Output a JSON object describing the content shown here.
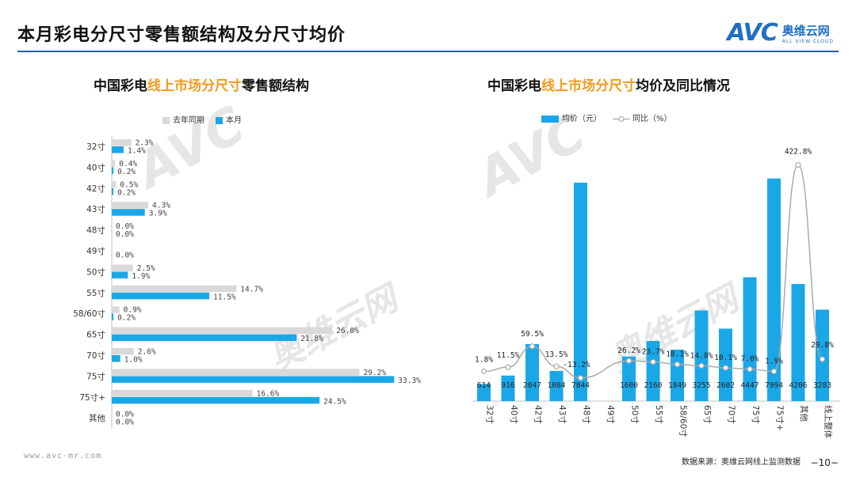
{
  "header": {
    "title": "本月彩电分尺寸零售额结构及分尺寸均价",
    "brand_logo": "AVC",
    "brand_cn": "奥维云网",
    "brand_en": "ALL VIEW CLOUD"
  },
  "left_chart": {
    "title_pre": "中国彩电",
    "title_hl": "线上市场分尺寸",
    "title_post": "零售额结构",
    "legend_prev": "去年同期",
    "legend_curr": "本月"
  },
  "right_chart": {
    "title_pre": "中国彩电",
    "title_hl": "线上市场分尺寸",
    "title_post": "均价及同比情况",
    "legend_bar": "均价（元）",
    "legend_line": "同比（%）"
  },
  "footer": {
    "url": "www.avc-mr.com",
    "source": "数据来源：奥维云网线上监测数据",
    "page": "−10−"
  },
  "colors": {
    "accent": "#1aa7e8",
    "prev": "#d9d9d9",
    "line": "#aaaaaa",
    "highlight": "#f39a1e",
    "rule": "#1f5fb3"
  },
  "chart_data": [
    {
      "type": "bar",
      "orientation": "horizontal",
      "categories": [
        "32寸",
        "40寸",
        "42寸",
        "43寸",
        "48寸",
        "49寸",
        "50寸",
        "55寸",
        "58/60寸",
        "65寸",
        "70寸",
        "75寸",
        "75寸+",
        "其他"
      ],
      "series": [
        {
          "name": "去年同期",
          "values": [
            2.3,
            0.4,
            0.5,
            4.3,
            0.0,
            null,
            2.5,
            14.7,
            0.9,
            26.0,
            2.6,
            29.2,
            16.6,
            0.0
          ],
          "labels": [
            "2.3%",
            "0.4%",
            "0.5%",
            "4.3%",
            "0.0%",
            "",
            "2.5%",
            "14.7%",
            "0.9%",
            "26.0%",
            "2.6%",
            "29.2%",
            "16.6%",
            "0.0%"
          ]
        },
        {
          "name": "本月",
          "values": [
            1.4,
            0.2,
            0.2,
            3.9,
            0.0,
            0.0,
            1.9,
            11.5,
            0.2,
            21.8,
            1.0,
            33.3,
            24.5,
            0.0
          ],
          "labels": [
            "1.4%",
            "0.2%",
            "0.2%",
            "3.9%",
            "0.0%",
            "0.0%",
            "1.9%",
            "11.5%",
            "0.2%",
            "21.8%",
            "1.0%",
            "33.3%",
            "24.5%",
            "0.0%"
          ]
        }
      ]
    },
    {
      "type": "bar",
      "categories": [
        "32寸",
        "40寸",
        "42寸",
        "43寸",
        "48寸",
        "49寸",
        "50寸",
        "55寸",
        "58/60寸",
        "65寸",
        "70寸",
        "75寸",
        "75寸+",
        "其他",
        "线上整体"
      ],
      "series": [
        {
          "name": "均价（元）",
          "type": "bar",
          "values": [
            614,
            916,
            2047,
            1084,
            7844,
            null,
            1600,
            2160,
            1849,
            3255,
            2602,
            4447,
            7994,
            4206,
            3283
          ],
          "labels": [
            "614",
            "916",
            "2047",
            "1084",
            "7844",
            "",
            "1600",
            "2160",
            "1849",
            "3255",
            "2602",
            "4447",
            "7994",
            "4206",
            "3283"
          ]
        },
        {
          "name": "同比（%）",
          "type": "line",
          "values": [
            1.8,
            11.5,
            59.5,
            13.5,
            -13.2,
            null,
            26.2,
            23.7,
            18.1,
            14.8,
            10.1,
            7.0,
            1.9,
            422.8,
            29.8
          ],
          "labels": [
            "1.8%",
            "11.5%",
            "59.5%",
            "13.5%",
            "-13.2%",
            "",
            "26.2%",
            "23.7%",
            "18.1%",
            "14.8%",
            "10.1%",
            "7.0%",
            "1.9%",
            "422.8%",
            "29.8%"
          ]
        }
      ]
    }
  ]
}
